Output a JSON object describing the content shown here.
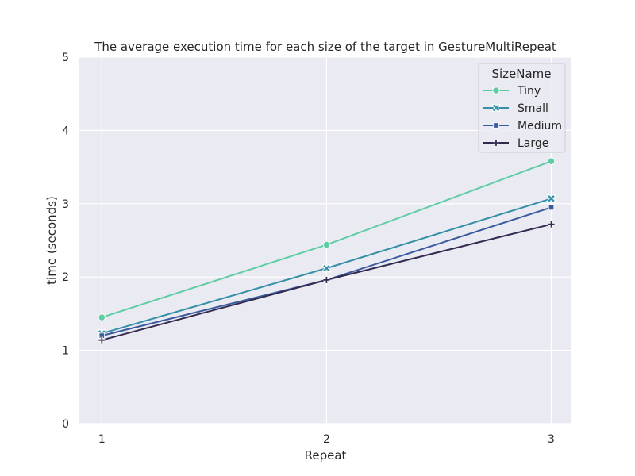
{
  "chart_data": {
    "type": "line",
    "title": "The average execution time for each size of the target in GestureMultiRepeat",
    "xlabel": "Repeat",
    "ylabel": "time (seconds)",
    "x": [
      1,
      2,
      3
    ],
    "xticks": [
      "1",
      "2",
      "3"
    ],
    "xlim": [
      0.9,
      3.09
    ],
    "ylim": [
      0,
      5
    ],
    "yticks": [
      "0",
      "1",
      "2",
      "3",
      "4",
      "5"
    ],
    "grid": true,
    "legend": {
      "title": "SizeName",
      "placement": "top-right"
    },
    "series": [
      {
        "name": "Tiny",
        "values": [
          1.45,
          2.44,
          3.58
        ],
        "color": "#5fcda4",
        "marker": "circle"
      },
      {
        "name": "Small",
        "values": [
          1.23,
          2.12,
          3.07
        ],
        "color": "#348fa7",
        "marker": "x"
      },
      {
        "name": "Medium",
        "values": [
          1.2,
          1.96,
          2.95
        ],
        "color": "#3a5b9e",
        "marker": "square"
      },
      {
        "name": "Large",
        "values": [
          1.14,
          1.96,
          2.72
        ],
        "color": "#332a4f",
        "marker": "plus"
      }
    ],
    "colors": {
      "plot_background": "#eaeaf2",
      "grid": "#ffffff",
      "text": "#262626"
    }
  }
}
